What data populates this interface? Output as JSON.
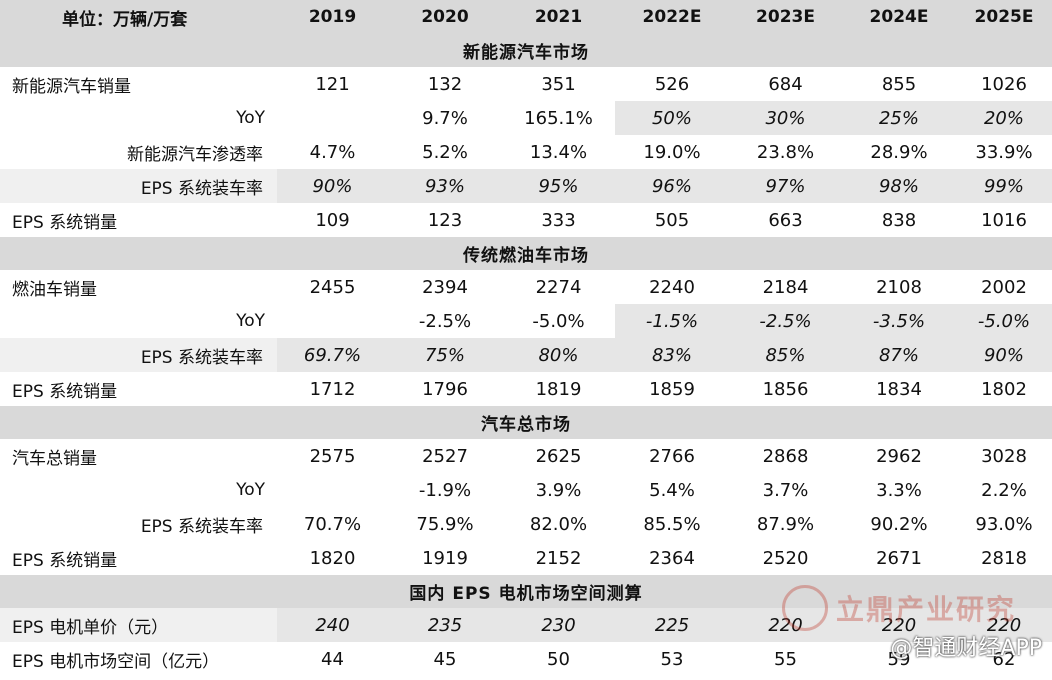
{
  "header": {
    "unit": "单位：万辆/万套",
    "years": [
      "2019",
      "2020",
      "2021",
      "2022E",
      "2023E",
      "2024E",
      "2025E"
    ]
  },
  "sections": [
    {
      "title": "新能源汽车市场",
      "rows": [
        {
          "label": "新能源汽车销量",
          "indent": 0,
          "values": [
            "121",
            "132",
            "351",
            "526",
            "684",
            "855",
            "1026"
          ],
          "shade": [],
          "italic": []
        },
        {
          "label": "YoY",
          "indent": 1,
          "values": [
            "",
            "9.7%",
            "165.1%",
            "50%",
            "30%",
            "25%",
            "20%"
          ],
          "shade": [
            3,
            4,
            5,
            6
          ],
          "italic": [
            3,
            4,
            5,
            6
          ]
        },
        {
          "label": "新能源汽车渗透率",
          "indent": 2,
          "values": [
            "4.7%",
            "5.2%",
            "13.4%",
            "19.0%",
            "23.8%",
            "28.9%",
            "33.9%"
          ],
          "shade": [],
          "italic": []
        },
        {
          "label": "EPS 系统装车率",
          "indent": 2,
          "values": [
            "90%",
            "93%",
            "95%",
            "96%",
            "97%",
            "98%",
            "99%"
          ],
          "shade": [
            0,
            1,
            2,
            3,
            4,
            5,
            6
          ],
          "italic": [
            0,
            1,
            2,
            3,
            4,
            5,
            6
          ]
        },
        {
          "label": "EPS 系统销量",
          "indent": 0,
          "values": [
            "109",
            "123",
            "333",
            "505",
            "663",
            "838",
            "1016"
          ],
          "shade": [],
          "italic": []
        }
      ]
    },
    {
      "title": "传统燃油车市场",
      "rows": [
        {
          "label": "燃油车销量",
          "indent": 0,
          "values": [
            "2455",
            "2394",
            "2274",
            "2240",
            "2184",
            "2108",
            "2002"
          ],
          "shade": [],
          "italic": []
        },
        {
          "label": "YoY",
          "indent": 1,
          "values": [
            "",
            "-2.5%",
            "-5.0%",
            "-1.5%",
            "-2.5%",
            "-3.5%",
            "-5.0%"
          ],
          "shade": [
            3,
            4,
            5,
            6
          ],
          "italic": [
            3,
            4,
            5,
            6
          ]
        },
        {
          "label": "EPS 系统装车率",
          "indent": 2,
          "values": [
            "69.7%",
            "75%",
            "80%",
            "83%",
            "85%",
            "87%",
            "90%"
          ],
          "shade": [
            0,
            1,
            2,
            3,
            4,
            5,
            6
          ],
          "italic": [
            0,
            1,
            2,
            3,
            4,
            5,
            6
          ]
        },
        {
          "label": "EPS 系统销量",
          "indent": 0,
          "values": [
            "1712",
            "1796",
            "1819",
            "1859",
            "1856",
            "1834",
            "1802"
          ],
          "shade": [],
          "italic": []
        }
      ]
    },
    {
      "title": "汽车总市场",
      "rows": [
        {
          "label": "汽车总销量",
          "indent": 0,
          "values": [
            "2575",
            "2527",
            "2625",
            "2766",
            "2868",
            "2962",
            "3028"
          ],
          "shade": [],
          "italic": []
        },
        {
          "label": "YoY",
          "indent": 1,
          "values": [
            "",
            "-1.9%",
            "3.9%",
            "5.4%",
            "3.7%",
            "3.3%",
            "2.2%"
          ],
          "shade": [],
          "italic": []
        },
        {
          "label": "EPS 系统装车率",
          "indent": 2,
          "values": [
            "70.7%",
            "75.9%",
            "82.0%",
            "85.5%",
            "87.9%",
            "90.2%",
            "93.0%"
          ],
          "shade": [],
          "italic": []
        },
        {
          "label": "EPS 系统销量",
          "indent": 0,
          "values": [
            "1820",
            "1919",
            "2152",
            "2364",
            "2520",
            "2671",
            "2818"
          ],
          "shade": [],
          "italic": []
        }
      ]
    },
    {
      "title": "国内 EPS 电机市场空间测算",
      "rows": [
        {
          "label": "EPS 电机单价（元）",
          "indent": 0,
          "values": [
            "240",
            "235",
            "230",
            "225",
            "220",
            "220",
            "220"
          ],
          "shade": [
            0,
            1,
            2,
            3,
            4,
            5,
            6
          ],
          "italic": [
            0,
            1,
            2,
            3,
            4,
            5,
            6
          ]
        },
        {
          "label": "EPS 电机市场空间（亿元）",
          "indent": 0,
          "values": [
            "44",
            "45",
            "50",
            "53",
            "55",
            "59",
            "62"
          ],
          "shade": [],
          "italic": []
        }
      ]
    }
  ],
  "watermarks": {
    "brand": "立鼎产业研究",
    "app": "@智通财经APP"
  }
}
